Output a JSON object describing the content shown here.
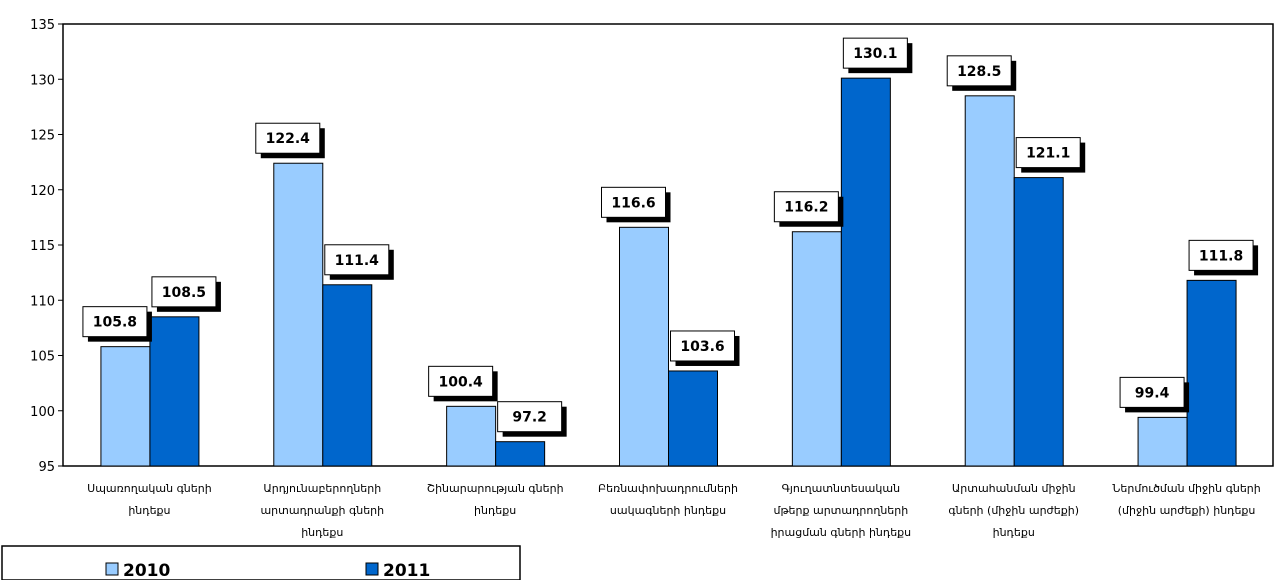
{
  "chart_data": {
    "type": "bar",
    "categories": [
      [
        "Սպառողական գների",
        "ինդեքս"
      ],
      [
        "Արդյունաբերողների",
        "արտադրանքի գների",
        "ինդեքս"
      ],
      [
        "Շինարարության գների",
        "ինդեքս"
      ],
      [
        "Բեռնափոխադրումների",
        "սակագների ինդեքս"
      ],
      [
        "Գյուղատնտեսական",
        "մթերք արտադրողների",
        "իրացման գների ինդեքս"
      ],
      [
        "Արտահանման միջին",
        "գների (միջին արժեքի)",
        "ինդեքս"
      ],
      [
        "Ներմուծման միջին գների",
        "(միջին արժեքի) ինդեքս"
      ]
    ],
    "series": [
      {
        "name": "2010",
        "color": "#99ccff",
        "values": [
          105.8,
          122.4,
          100.4,
          116.6,
          116.2,
          128.5,
          99.4
        ]
      },
      {
        "name": "2011",
        "color": "#0066cc",
        "values": [
          108.5,
          111.4,
          97.2,
          103.6,
          130.1,
          121.1,
          111.8
        ]
      }
    ],
    "value_labels": [
      [
        "105.8",
        "122.4",
        "100.4",
        "116.6",
        "116.2",
        "128.5",
        "99.4"
      ],
      [
        "108.5",
        "111.4",
        "97.2",
        "103.6",
        "130.1",
        "121.1",
        "111.8"
      ]
    ],
    "ylim": [
      95,
      135
    ],
    "yticks": [
      95,
      100,
      105,
      110,
      115,
      120,
      125,
      130,
      135
    ],
    "grid": "vertical",
    "legend": "bottom-left",
    "xlabel": "",
    "ylabel": "",
    "title": ""
  }
}
